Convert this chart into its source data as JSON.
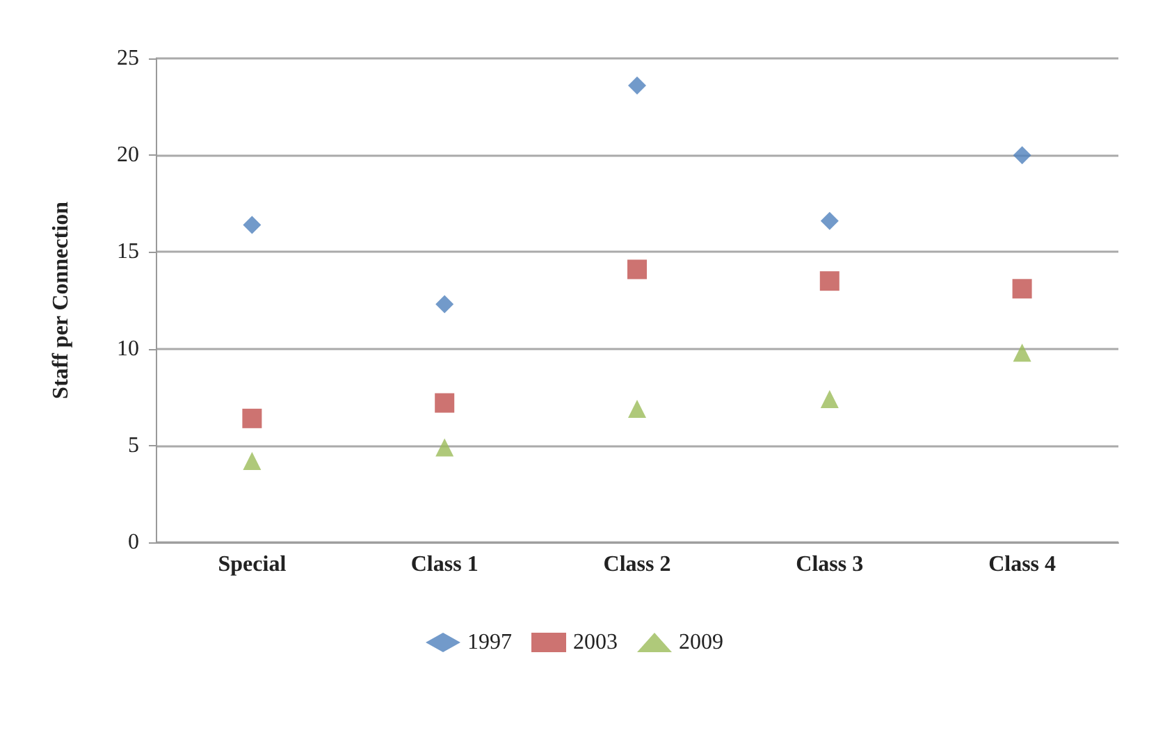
{
  "chart_data": {
    "type": "scatter",
    "ylabel": "Staff per Connection",
    "categories": [
      "Special",
      "Class 1",
      "Class 2",
      "Class 3",
      "Class 4"
    ],
    "series": [
      {
        "name": "1997",
        "color": "#4f81bd",
        "marker": "diamond",
        "values": [
          16.4,
          12.3,
          23.6,
          16.6,
          20
        ]
      },
      {
        "name": "2003",
        "color": "#c0504d",
        "marker": "square",
        "values": [
          6.4,
          7.2,
          14.1,
          13.5,
          13.1
        ]
      },
      {
        "name": "2009",
        "color": "#9bbb59",
        "marker": "triangle",
        "values": [
          4.2,
          4.9,
          6.9,
          7.4,
          9.8
        ]
      }
    ],
    "ylim": [
      0,
      25
    ],
    "yticks": [
      0,
      5,
      10,
      15,
      20,
      25
    ],
    "grid": "y",
    "legend": "bottom"
  }
}
